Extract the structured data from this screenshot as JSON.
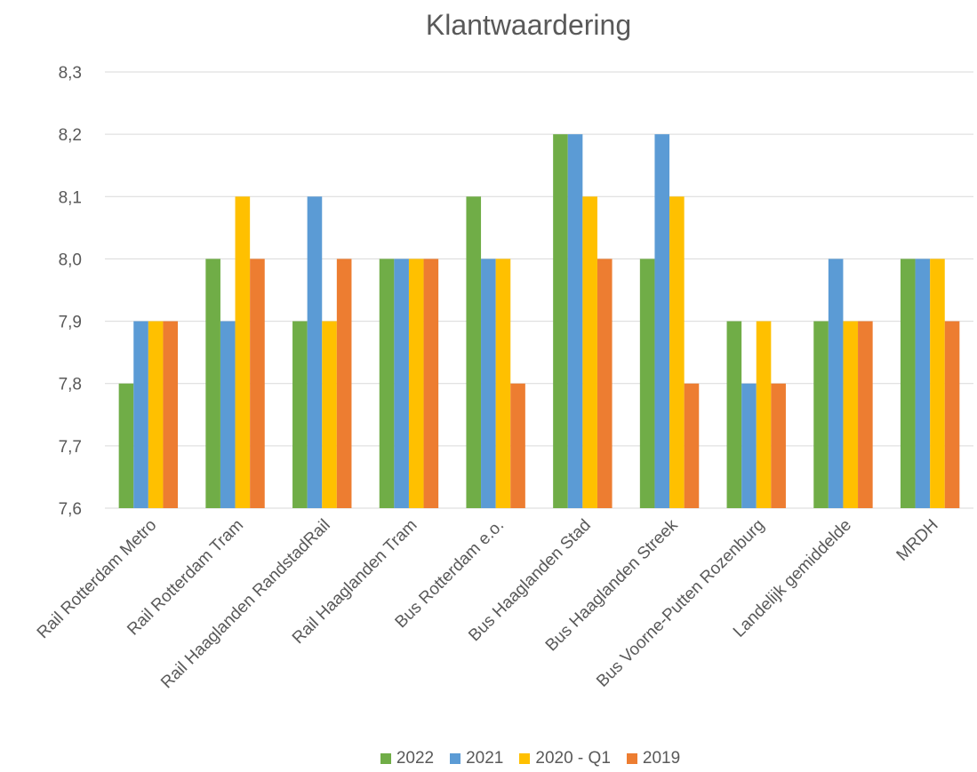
{
  "chart_data": {
    "type": "bar",
    "title": "Klantwaardering",
    "xlabel": "",
    "ylabel": "",
    "ylim": [
      7.6,
      8.3
    ],
    "yticks": [
      "7,6",
      "7,7",
      "7,8",
      "7,9",
      "8,0",
      "8,1",
      "8,2",
      "8,3"
    ],
    "grid": true,
    "legend_position": "bottom",
    "categories": [
      "Rail Rotterdam Metro",
      "Rail Rotterdam Tram",
      "Rail Haaglanden RandstadRail",
      "Rail Haaglanden Tram",
      "Bus Rotterdam e.o.",
      "Bus Haaglanden Stad",
      "Bus Haaglanden Streek",
      "Bus Voorne-Putten Rozenburg",
      "Landelijk gemiddelde",
      "MRDH"
    ],
    "series": [
      {
        "name": "2022",
        "color": "#70AD47",
        "values": [
          7.8,
          8.0,
          7.9,
          8.0,
          8.1,
          8.2,
          8.0,
          7.9,
          7.9,
          8.0
        ]
      },
      {
        "name": "2021",
        "color": "#5B9BD5",
        "values": [
          7.9,
          7.9,
          8.1,
          8.0,
          8.0,
          8.2,
          8.2,
          7.8,
          8.0,
          8.0
        ]
      },
      {
        "name": "2020 - Q1",
        "color": "#FFC000",
        "values": [
          7.9,
          8.1,
          7.9,
          8.0,
          8.0,
          8.1,
          8.1,
          7.9,
          7.9,
          8.0
        ]
      },
      {
        "name": "2019",
        "color": "#ED7D31",
        "values": [
          7.9,
          8.0,
          8.0,
          8.0,
          7.8,
          8.0,
          7.8,
          7.8,
          7.9,
          7.9
        ]
      }
    ]
  }
}
